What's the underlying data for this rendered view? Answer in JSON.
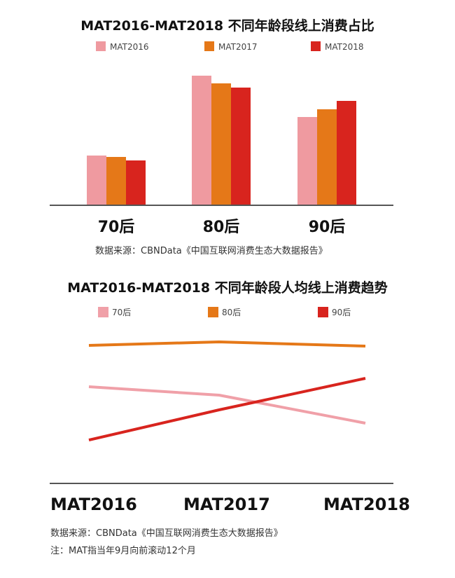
{
  "chart_data": [
    {
      "type": "bar",
      "title": "MAT2016-MAT2018 不同年龄段线上消费占比",
      "categories": [
        "70后",
        "80后",
        "90后"
      ],
      "series": [
        {
          "name": "MAT2016",
          "color": "#ef9aa0",
          "values": [
            71,
            185,
            126
          ]
        },
        {
          "name": "MAT2017",
          "color": "#e57818",
          "values": [
            69,
            174,
            137
          ]
        },
        {
          "name": "MAT2018",
          "color": "#d8241e",
          "values": [
            64,
            168,
            149
          ]
        }
      ],
      "ylim": [
        0,
        200
      ],
      "legend": "top",
      "grid": false,
      "source": "数据来源：CBNData《中国互联网消费生态大数据报告》"
    },
    {
      "type": "line",
      "title": "MAT2016-MAT2018 不同年龄段人均线上消费趋势",
      "categories": [
        "MAT2016",
        "MAT2017",
        "MAT2018"
      ],
      "series": [
        {
          "name": "70后",
          "color": "#f0a0a8",
          "values": [
            138,
            126,
            86
          ]
        },
        {
          "name": "80后",
          "color": "#e57818",
          "values": [
            197,
            202,
            196
          ]
        },
        {
          "name": "90后",
          "color": "#d8241e",
          "values": [
            62,
            105,
            150
          ]
        }
      ],
      "ylim": [
        0,
        230
      ],
      "legend": "top",
      "grid": false,
      "source": "数据来源：CBNData《中国互联网消费生态大数据报告》",
      "note": "注：MAT指当年9月向前滚动12个月"
    }
  ]
}
